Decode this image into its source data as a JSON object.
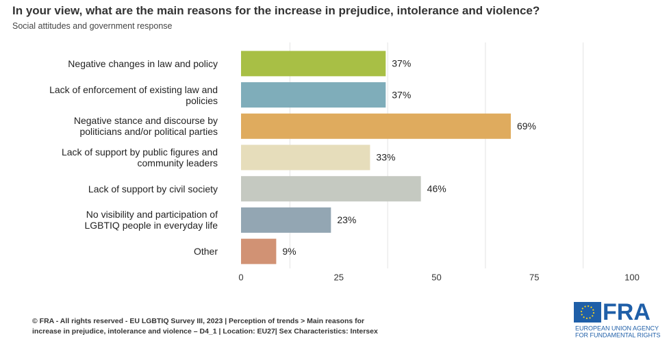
{
  "chart_data": {
    "type": "hbar",
    "title": "In your view, what are the main reasons for the increase in prejudice, intolerance and violence?",
    "subtitle": "Social attitudes and government response",
    "categories": [
      "Negative changes in law and policy",
      "Lack of enforcement of existing law and\npolicies",
      "Negative stance and discourse by\npoliticians and/or political parties",
      "Lack of support by public figures and\ncommunity leaders",
      "Lack of support by civil society",
      "No visibility and participation of\nLGBTIQ people in everyday life",
      "Other"
    ],
    "values": [
      37,
      37,
      69,
      33,
      46,
      23,
      9
    ],
    "value_labels": [
      "37%",
      "37%",
      "69%",
      "33%",
      "46%",
      "23%",
      "9%"
    ],
    "colors": [
      "#a8bf45",
      "#7fadba",
      "#dfab5e",
      "#e6ddbb",
      "#c5c9c1",
      "#93a6b3",
      "#d19274"
    ],
    "xlim": [
      0,
      100
    ],
    "xticks": [
      0,
      25,
      50,
      75,
      100
    ],
    "grid_lines": [
      12.5,
      37.5,
      62.5,
      87.5
    ],
    "grid": true
  },
  "footer": "© FRA - All rights reserved - EU LGBTIQ Survey III, 2023 | Perception of trends > Main reasons for\nincrease in prejudice, intolerance and violence – D4_1 | Location: EU27| Sex Characteristics: Intersex",
  "logo": {
    "name": "FRA",
    "line1": "EUROPEAN UNION AGENCY",
    "line2": "FOR FUNDAMENTAL RIGHTS"
  }
}
